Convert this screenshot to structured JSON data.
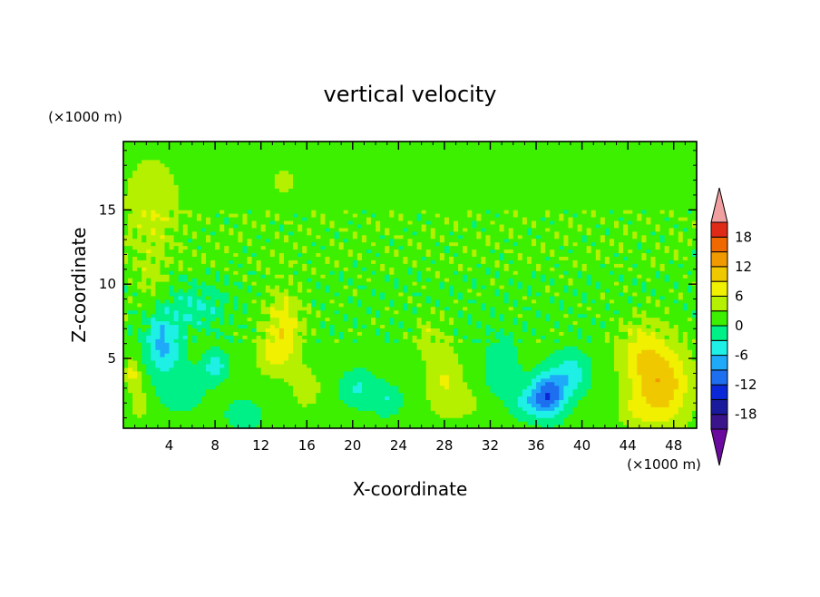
{
  "chart_data": {
    "type": "heatmap",
    "title": "vertical velocity",
    "xlabel": "X-coordinate",
    "ylabel": "Z-coordinate",
    "x_unit": "(×1000 m)",
    "y_unit": "(×1000 m)",
    "xlim": [
      0,
      50
    ],
    "ylim": [
      0.3,
      19.6
    ],
    "x_ticks": [
      4,
      8,
      12,
      16,
      20,
      24,
      28,
      32,
      36,
      40,
      44,
      48
    ],
    "y_ticks": [
      5,
      10,
      15
    ],
    "colorbar": {
      "levels": [
        -21,
        -18,
        -15,
        -12,
        -9,
        -6,
        -3,
        0,
        3,
        6,
        9,
        12,
        15,
        18,
        21
      ],
      "tick_labels": [
        "18",
        "12",
        "6",
        "0",
        "-6",
        "-12",
        "-18"
      ],
      "tick_values": [
        18,
        12,
        6,
        0,
        -6,
        -12,
        -18
      ],
      "colors": [
        "#6a0a9f",
        "#3a148a",
        "#1a1a9c",
        "#0a28d8",
        "#1e6ef0",
        "#1eaaf8",
        "#1ef0e6",
        "#00f088",
        "#3cf000",
        "#b4f000",
        "#f0f000",
        "#f0c800",
        "#f09a00",
        "#f06800",
        "#e02a18",
        "#f0a0a0"
      ],
      "extend": "both"
    },
    "features": [
      {
        "label": "updraft",
        "x": 47,
        "z": 3.0,
        "peak": 10
      },
      {
        "label": "updraft",
        "x": 14,
        "z": 7.0,
        "peak": 6
      },
      {
        "label": "updraft",
        "x": 28,
        "z": 3.5,
        "peak": 5
      },
      {
        "label": "downdraft",
        "x": 37,
        "z": 2.5,
        "peak": -12
      },
      {
        "label": "downdraft",
        "x": 3.5,
        "z": 6.0,
        "peak": -8
      },
      {
        "label": "downdraft",
        "x": 8,
        "z": 5.5,
        "peak": -5
      },
      {
        "label": "downdraft",
        "x": 21,
        "z": 3.0,
        "peak": -4
      }
    ]
  }
}
